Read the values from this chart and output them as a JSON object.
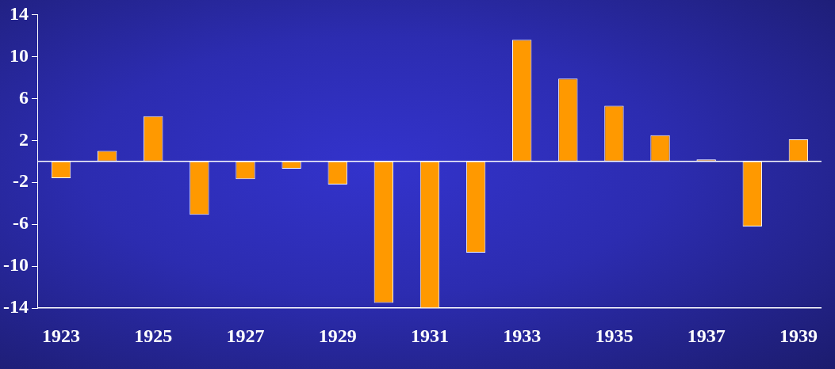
{
  "chart_data": {
    "type": "bar",
    "categories": [
      "1923",
      null,
      "1925",
      null,
      "1927",
      null,
      "1929",
      null,
      "1931",
      null,
      "1933",
      null,
      "1935",
      null,
      "1937",
      null,
      "1939"
    ],
    "values": [
      -1.6,
      1.0,
      4.3,
      -5.1,
      -1.7,
      -0.7,
      -2.2,
      -13.5,
      -14.0,
      -8.7,
      11.6,
      7.9,
      5.3,
      2.5,
      0.2,
      -6.2,
      2.1
    ],
    "color": "#ff9900",
    "ylim": [
      -14,
      14
    ],
    "yticks": [
      -14,
      -10,
      -6,
      -2,
      2,
      6,
      10,
      14
    ],
    "grid": false,
    "legend": false
  }
}
